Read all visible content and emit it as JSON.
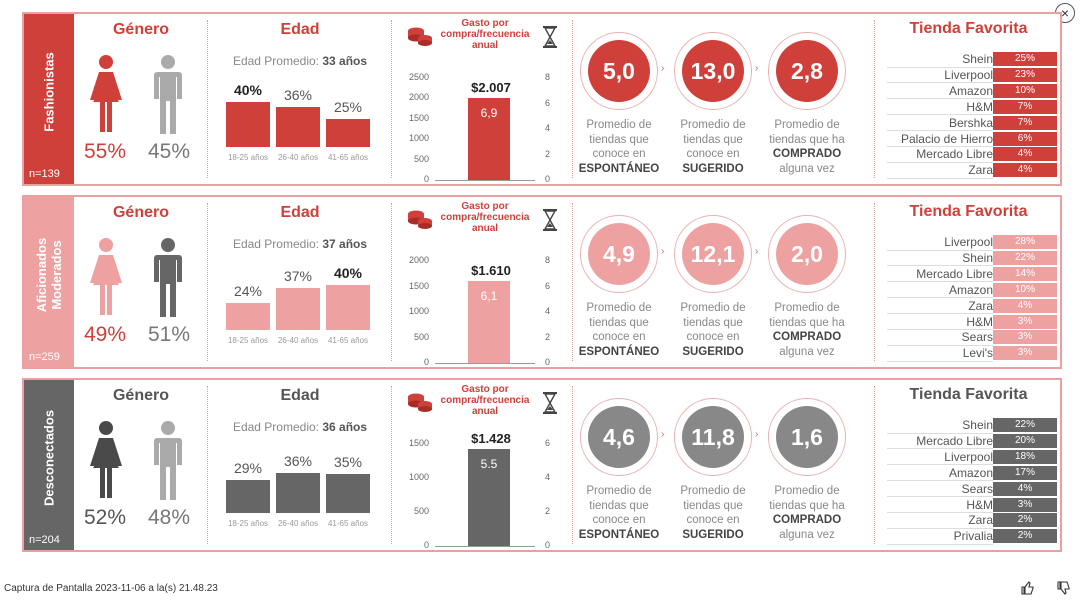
{
  "colors": {
    "red": "#d0403a",
    "pink": "#eea1a1",
    "gray": "#666666",
    "lightgray": "#aaaaaa",
    "darkgray": "#4a4a4a",
    "border": "#e8a0a0"
  },
  "close_icon": "×",
  "footer": {
    "caption": "Captura de Pantalla 2023-11-06 a la(s) 21.48.23"
  },
  "segments": [
    {
      "name": "Fashionistas",
      "n": "n=139",
      "scheme": "red",
      "genero": {
        "title": "Género",
        "female": "55%",
        "male": "45%"
      },
      "edad": {
        "title": "Edad",
        "avg_label": "Edad Promedio:",
        "avg_value": "33 años",
        "groups": [
          {
            "pct": "40%",
            "value": 40,
            "label": "18-25 años",
            "bold": true
          },
          {
            "pct": "36%",
            "value": 36,
            "label": "26-40 años",
            "bold": false
          },
          {
            "pct": "25%",
            "value": 25,
            "label": "41-65 años",
            "bold": false
          }
        ]
      },
      "gasto": {
        "title": "Gasto por compra/frecuencia anual",
        "amount": "$2.007",
        "frequency": "6,9",
        "amount_value": 2007,
        "frequency_value": 6.9,
        "left_ticks": [
          "2500",
          "2000",
          "1500",
          "1000",
          "500",
          "0"
        ],
        "right_ticks": [
          "8",
          "6",
          "4",
          "2",
          "0"
        ]
      },
      "circles": [
        {
          "value": "5,0",
          "caption_lines": [
            "Promedio de",
            "tiendas que",
            "conoce en"
          ],
          "caption_bold": "ESPONTÁNEO"
        },
        {
          "value": "13,0",
          "caption_lines": [
            "Promedio de",
            "tiendas que",
            "conoce en"
          ],
          "caption_bold": "SUGERIDO"
        },
        {
          "value": "2,8",
          "caption_lines": [
            "Promedio de",
            "tiendas que ha"
          ],
          "caption_bold": "COMPRADO",
          "caption_after": "alguna vez"
        }
      ],
      "tienda": {
        "title": "Tienda Favorita",
        "stores": [
          {
            "name": "Shein",
            "pct": "25%",
            "value": 25
          },
          {
            "name": "Liverpool",
            "pct": "23%",
            "value": 23
          },
          {
            "name": "Amazon",
            "pct": "10%",
            "value": 10
          },
          {
            "name": "H&M",
            "pct": "7%",
            "value": 7
          },
          {
            "name": "Bershka",
            "pct": "7%",
            "value": 7
          },
          {
            "name": "Palacio de Hierro",
            "pct": "6%",
            "value": 6
          },
          {
            "name": "Mercado Libre",
            "pct": "4%",
            "value": 4
          },
          {
            "name": "Zara",
            "pct": "4%",
            "value": 4
          }
        ]
      }
    },
    {
      "name": "Aficionados Moderados",
      "n": "n=259",
      "scheme": "pink",
      "genero": {
        "title": "Género",
        "female": "49%",
        "male": "51%"
      },
      "edad": {
        "title": "Edad",
        "avg_label": "Edad Promedio:",
        "avg_value": "37 años",
        "groups": [
          {
            "pct": "24%",
            "value": 24,
            "label": "18-25 años",
            "bold": false
          },
          {
            "pct": "37%",
            "value": 37,
            "label": "26-40 años",
            "bold": false
          },
          {
            "pct": "40%",
            "value": 40,
            "label": "41-65 años",
            "bold": true
          }
        ]
      },
      "gasto": {
        "title": "Gasto por compra/frecuencia anual",
        "amount": "$1.610",
        "frequency": "6,1",
        "amount_value": 1610,
        "frequency_value": 6.1,
        "left_ticks": [
          "2000",
          "1500",
          "1000",
          "500",
          "0"
        ],
        "right_ticks": [
          "8",
          "6",
          "4",
          "2",
          "0"
        ]
      },
      "circles": [
        {
          "value": "4,9",
          "caption_lines": [
            "Promedio de",
            "tiendas que",
            "conoce en"
          ],
          "caption_bold": "ESPONTÁNEO"
        },
        {
          "value": "12,1",
          "caption_lines": [
            "Promedio de",
            "tiendas que",
            "conoce en"
          ],
          "caption_bold": "SUGERIDO"
        },
        {
          "value": "2,0",
          "caption_lines": [
            "Promedio de",
            "tiendas que ha"
          ],
          "caption_bold": "COMPRADO",
          "caption_after": "alguna vez"
        }
      ],
      "tienda": {
        "title": "Tienda Favorita",
        "stores": [
          {
            "name": "Liverpool",
            "pct": "28%",
            "value": 28
          },
          {
            "name": "Shein",
            "pct": "22%",
            "value": 22
          },
          {
            "name": "Mercado Libre",
            "pct": "14%",
            "value": 14
          },
          {
            "name": "Amazon",
            "pct": "10%",
            "value": 10
          },
          {
            "name": "Zara",
            "pct": "4%",
            "value": 4
          },
          {
            "name": "H&M",
            "pct": "3%",
            "value": 3
          },
          {
            "name": "Sears",
            "pct": "3%",
            "value": 3
          },
          {
            "name": "Levi's",
            "pct": "3%",
            "value": 3
          }
        ]
      }
    },
    {
      "name": "Desconectados",
      "n": "n=204",
      "scheme": "gray",
      "genero": {
        "title": "Género",
        "female": "52%",
        "male": "48%"
      },
      "edad": {
        "title": "Edad",
        "avg_label": "Edad Promedio:",
        "avg_value": "36 años",
        "groups": [
          {
            "pct": "29%",
            "value": 29,
            "label": "18-25 años",
            "bold": false
          },
          {
            "pct": "36%",
            "value": 36,
            "label": "26-40 años",
            "bold": false
          },
          {
            "pct": "35%",
            "value": 35,
            "label": "41-65 años",
            "bold": false
          }
        ]
      },
      "gasto": {
        "title": "Gasto por compra/frecuencia anual",
        "amount": "$1.428",
        "frequency": "5.5",
        "amount_value": 1428,
        "frequency_value": 5.5,
        "left_ticks": [
          "1500",
          "1000",
          "500",
          "0"
        ],
        "right_ticks": [
          "6",
          "4",
          "2",
          "0"
        ]
      },
      "circles": [
        {
          "value": "4,6",
          "caption_lines": [
            "Promedio de",
            "tiendas que",
            "conoce en"
          ],
          "caption_bold": "ESPONTÁNEO"
        },
        {
          "value": "11,8",
          "caption_lines": [
            "Promedio de",
            "tiendas que",
            "conoce en"
          ],
          "caption_bold": "SUGERIDO"
        },
        {
          "value": "1,6",
          "caption_lines": [
            "Promedio de",
            "tiendas que ha"
          ],
          "caption_bold": "COMPRADO",
          "caption_after": "alguna vez"
        }
      ],
      "tienda": {
        "title": "Tienda Favorita",
        "stores": [
          {
            "name": "Shein",
            "pct": "22%",
            "value": 22
          },
          {
            "name": "Mercado Libre",
            "pct": "20%",
            "value": 20
          },
          {
            "name": "Liverpool",
            "pct": "18%",
            "value": 18
          },
          {
            "name": "Amazon",
            "pct": "17%",
            "value": 17
          },
          {
            "name": "Sears",
            "pct": "4%",
            "value": 4
          },
          {
            "name": "H&M",
            "pct": "3%",
            "value": 3
          },
          {
            "name": "Zara",
            "pct": "2%",
            "value": 2
          },
          {
            "name": "Privalia",
            "pct": "2%",
            "value": 2
          }
        ]
      }
    }
  ]
}
